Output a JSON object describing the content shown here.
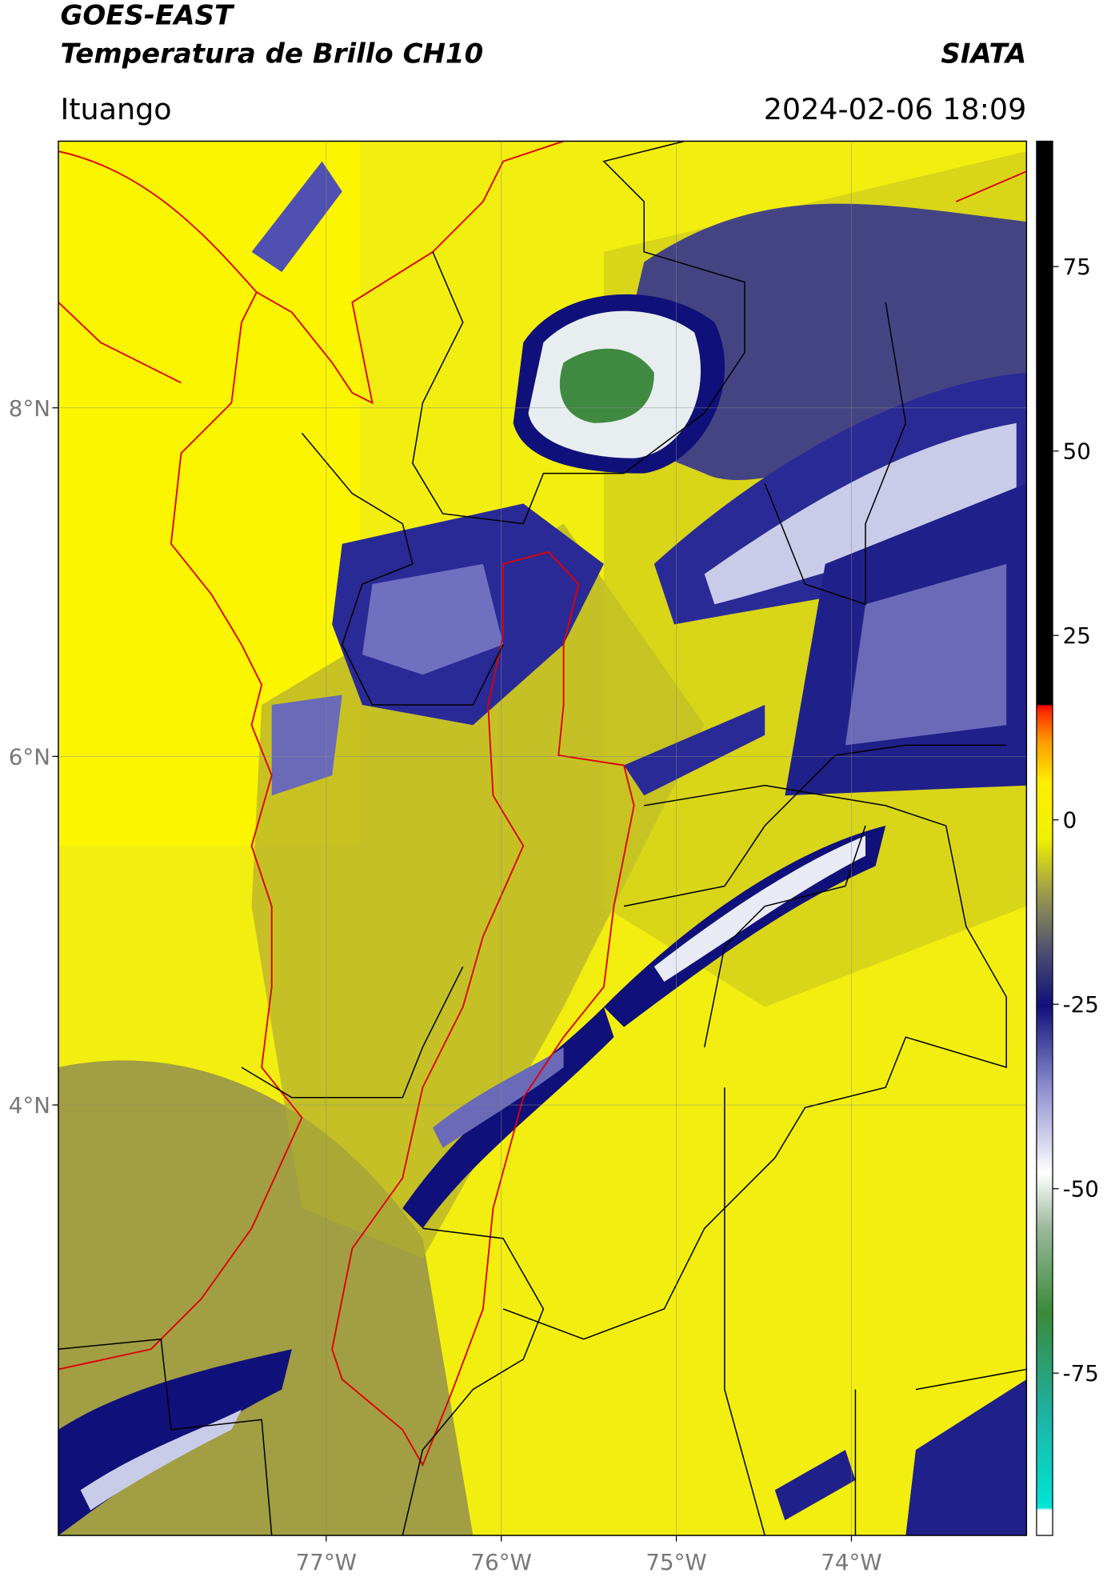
{
  "header": {
    "title": "GOES-EAST",
    "subtitle": "Temperatura de Brillo CH10",
    "source": "SIATA",
    "region": "Ituango",
    "datetime": "2024-02-06 18:09"
  },
  "map": {
    "lon_range": [
      -78.53,
      -73.0
    ],
    "lat_range": [
      1.53,
      9.53
    ],
    "lat_ticks": [
      {
        "value": 8,
        "label": "8°N"
      },
      {
        "value": 6,
        "label": "6°N"
      },
      {
        "value": 4,
        "label": "4°N"
      }
    ],
    "lon_ticks": [
      {
        "value": -77,
        "label": "77°W"
      },
      {
        "value": -76,
        "label": "76°W"
      },
      {
        "value": -75,
        "label": "75°W"
      },
      {
        "value": -74,
        "label": "74°W"
      }
    ],
    "grid": true
  },
  "colorbar": {
    "range": [
      -97,
      92
    ],
    "ticks": [
      75,
      50,
      25,
      0,
      -25,
      -50,
      -75
    ]
  }
}
